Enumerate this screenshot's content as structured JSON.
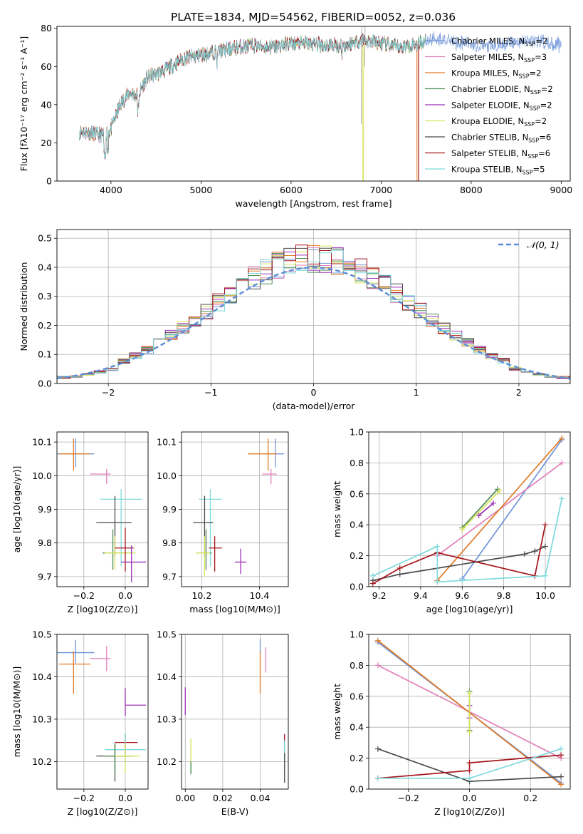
{
  "figure_title": "PLATE=1834, MJD=54562, FIBERID=0052, z=0.036",
  "colors": {
    "Chabrier MILES": "#6e94d8",
    "Salpeter MILES": "#e27fb8",
    "Kroupa MILES": "#e07b27",
    "Chabrier ELODIE": "#4c8c53",
    "Salpeter ELODIE": "#9b30b5",
    "Kroupa ELODIE": "#d9e35a",
    "Chabrier STELIB": "#4a4a4a",
    "Salpeter STELIB": "#a5151c",
    "Kroupa STELIB": "#7ed9dc",
    "normal": "#5b8ed6",
    "grid": "#b0b0b0"
  },
  "chart_data": [
    {
      "id": "spectrum",
      "type": "line",
      "xlabel": "wavelength [Angstrom, rest frame]",
      "ylabel": "Flux [fλ10⁻¹⁷ erg cm⁻² s⁻¹ A⁻¹]",
      "xlim": [
        3400,
        9100
      ],
      "ylim": [
        0,
        81
      ],
      "xticks": [
        4000,
        5000,
        6000,
        7000,
        8000,
        9000
      ],
      "yticks": [
        0,
        20,
        40,
        60,
        80
      ],
      "grid": false,
      "legend": "right",
      "continuum": {
        "x": [
          3650,
          3800,
          3900,
          4000,
          4100,
          4200,
          4300,
          4400,
          4600,
          4800,
          5000,
          5200,
          5400,
          5600,
          5800,
          6000,
          6200,
          6400,
          6600,
          6800,
          7000,
          7200,
          7400,
          7600,
          7800,
          8000,
          8200,
          8400,
          8700,
          9000
        ],
        "y": [
          26,
          25,
          24,
          27,
          40,
          46,
          45,
          54,
          58,
          64,
          66,
          68,
          70,
          71,
          70,
          72,
          72,
          71,
          71,
          74,
          72,
          70,
          72,
          75,
          73,
          72,
          70,
          72,
          74,
          71
        ]
      },
      "series": [
        {
          "name": "Chabrier MILES",
          "nssp": "2",
          "xmax": 9000
        },
        {
          "name": "Salpeter MILES",
          "nssp": "3",
          "xmax": 7500
        },
        {
          "name": "Kroupa MILES",
          "nssp": "2",
          "xmax": 7400,
          "drop_at": 7400
        },
        {
          "name": "Chabrier ELODIE",
          "nssp": "2",
          "xmax": 7500
        },
        {
          "name": "Salpeter ELODIE",
          "nssp": "2",
          "xmax": 7500
        },
        {
          "name": "Kroupa ELODIE",
          "nssp": "2",
          "xmax": 7500,
          "drop_at": 6800
        },
        {
          "name": "Chabrier STELIB",
          "nssp": "6",
          "xmax": 7500
        },
        {
          "name": "Salpeter STELIB",
          "nssp": "6",
          "xmax": 7420,
          "drop_at": 7420
        },
        {
          "name": "Kroupa STELIB",
          "nssp": "5",
          "xmax": 7500
        }
      ]
    },
    {
      "id": "residuals",
      "type": "histogram",
      "xlabel": "(data-model)/error",
      "ylabel": "Normed distribution",
      "xlim": [
        -2.5,
        2.5
      ],
      "ylim": [
        0,
        0.53
      ],
      "xticks": [
        -2,
        -1,
        0,
        1,
        2
      ],
      "yticks": [
        0.0,
        0.1,
        0.2,
        0.3,
        0.4,
        0.5
      ],
      "grid": true,
      "legend": "top-right",
      "normal_label": "𝒩(0, 1)",
      "bins": 45
    },
    {
      "id": "age_vs_Z",
      "type": "errorbar",
      "xlabel": "Z [log10(Z/Z⊙)]",
      "ylabel": "age  [log10(age/yr)]",
      "xlim": [
        -0.33,
        0.11
      ],
      "ylim": [
        9.67,
        10.13
      ],
      "xticks": [
        -0.2,
        0.0
      ],
      "yticks": [
        9.7,
        9.8,
        9.9,
        10.0,
        10.1
      ],
      "grid": true,
      "points": [
        {
          "name": "Chabrier MILES",
          "x": -0.24,
          "y": 10.065,
          "xerr": [
            0.09,
            0.09
          ],
          "yerr": [
            0.04,
            0.045
          ]
        },
        {
          "name": "Kroupa MILES",
          "x": -0.25,
          "y": 10.065,
          "xerr": [
            0.07,
            0.08
          ],
          "yerr": [
            0.05,
            0.045
          ]
        },
        {
          "name": "Salpeter MILES",
          "x": -0.09,
          "y": 10.005,
          "xerr": [
            0.08,
            0.02
          ],
          "yerr": [
            0.03,
            0.015
          ]
        },
        {
          "name": "Kroupa STELIB",
          "x": -0.02,
          "y": 9.93,
          "xerr": [
            0.1,
            0.1
          ],
          "yerr": [
            0.2,
            0.03
          ]
        },
        {
          "name": "Chabrier STELIB",
          "x": -0.05,
          "y": 9.86,
          "xerr": [
            0.09,
            0.08
          ],
          "yerr": [
            0.1,
            0.08
          ]
        },
        {
          "name": "Chabrier ELODIE",
          "x": -0.06,
          "y": 9.77,
          "xerr": [
            0.05,
            0.09
          ],
          "yerr": [
            0.05,
            0.07
          ]
        },
        {
          "name": "Kroupa ELODIE",
          "x": -0.05,
          "y": 9.77,
          "xerr": [
            0.05,
            0.1
          ],
          "yerr": [
            0.05,
            0.05
          ]
        },
        {
          "name": "Salpeter STELIB",
          "x": 0.0,
          "y": 9.785,
          "xerr": [
            0.05,
            0.04
          ],
          "yerr": [
            0.07,
            0.06
          ]
        },
        {
          "name": "Salpeter ELODIE",
          "x": 0.03,
          "y": 9.743,
          "xerr": [
            0.05,
            0.07
          ],
          "yerr": [
            0.06,
            0.05
          ]
        }
      ]
    },
    {
      "id": "age_vs_mass",
      "type": "errorbar",
      "xlabel": "mass [log10(M/M⊙)]",
      "ylabel": "",
      "xlim": [
        10.13,
        10.5
      ],
      "ylim": [
        9.67,
        10.13
      ],
      "xticks": [
        10.2,
        10.4
      ],
      "yticks": [
        9.7,
        9.8,
        9.9,
        10.0,
        10.1
      ],
      "grid": true,
      "points": [
        {
          "name": "Chabrier MILES",
          "x": 10.455,
          "y": 10.065,
          "xerr": [
            0.03,
            0.03
          ],
          "yerr": [
            0.04,
            0.045
          ]
        },
        {
          "name": "Kroupa MILES",
          "x": 10.43,
          "y": 10.065,
          "xerr": [
            0.07,
            0.03
          ],
          "yerr": [
            0.05,
            0.045
          ]
        },
        {
          "name": "Salpeter MILES",
          "x": 10.44,
          "y": 10.005,
          "xerr": [
            0.03,
            0.02
          ],
          "yerr": [
            0.03,
            0.015
          ]
        },
        {
          "name": "Kroupa STELIB",
          "x": 10.23,
          "y": 9.93,
          "xerr": [
            0.04,
            0.04
          ],
          "yerr": [
            0.2,
            0.03
          ]
        },
        {
          "name": "Chabrier STELIB",
          "x": 10.21,
          "y": 9.86,
          "xerr": [
            0.04,
            0.03
          ],
          "yerr": [
            0.1,
            0.08
          ]
        },
        {
          "name": "Chabrier ELODIE",
          "x": 10.215,
          "y": 9.77,
          "xerr": [
            0.03,
            0.02
          ],
          "yerr": [
            0.05,
            0.07
          ]
        },
        {
          "name": "Kroupa ELODIE",
          "x": 10.21,
          "y": 9.77,
          "xerr": [
            0.03,
            0.02
          ],
          "yerr": [
            0.07,
            0.05
          ]
        },
        {
          "name": "Salpeter STELIB",
          "x": 10.245,
          "y": 9.785,
          "xerr": [
            0.02,
            0.025
          ],
          "yerr": [
            0.07,
            0.035
          ]
        },
        {
          "name": "Salpeter ELODIE",
          "x": 10.335,
          "y": 9.743,
          "xerr": [
            0.02,
            0.02
          ],
          "yerr": [
            0.035,
            0.04
          ]
        }
      ]
    },
    {
      "id": "sfh_age",
      "type": "line",
      "xlabel": "age  [log10(age/yr)]",
      "ylabel": "mass weight",
      "xlim": [
        9.15,
        10.12
      ],
      "ylim": [
        0,
        1
      ],
      "xticks": [
        9.2,
        9.4,
        9.6,
        9.8,
        10.0
      ],
      "yticks": [
        0.0,
        0.2,
        0.4,
        0.6,
        0.8,
        1.0
      ],
      "grid": true,
      "series": [
        {
          "name": "Chabrier MILES",
          "x": [
            9.6,
            10.08
          ],
          "y": [
            0.05,
            0.95
          ]
        },
        {
          "name": "Salpeter MILES",
          "x": [
            9.48,
            10.08
          ],
          "y": [
            0.2,
            0.8
          ]
        },
        {
          "name": "Kroupa MILES",
          "x": [
            9.48,
            10.08
          ],
          "y": [
            0.04,
            0.96
          ]
        },
        {
          "name": "Chabrier ELODIE",
          "x": [
            9.6,
            9.77
          ],
          "y": [
            0.38,
            0.63
          ]
        },
        {
          "name": "Salpeter ELODIE",
          "x": [
            9.68,
            9.75
          ],
          "y": [
            0.46,
            0.54
          ]
        },
        {
          "name": "Kroupa ELODIE",
          "x": [
            9.6,
            9.78
          ],
          "y": [
            0.37,
            0.62
          ]
        },
        {
          "name": "Chabrier STELIB",
          "x": [
            9.17,
            9.3,
            9.9,
            9.95,
            10.0
          ],
          "y": [
            0.04,
            0.08,
            0.21,
            0.23,
            0.26
          ]
        },
        {
          "name": "Salpeter STELIB",
          "x": [
            9.17,
            9.3,
            9.48,
            9.95,
            10.0
          ],
          "y": [
            0.02,
            0.12,
            0.22,
            0.07,
            0.4
          ]
        },
        {
          "name": "Kroupa STELIB",
          "x": [
            9.17,
            9.48,
            9.48,
            9.6,
            10.0,
            10.08
          ],
          "y": [
            0.07,
            0.26,
            0.03,
            0.04,
            0.07,
            0.57
          ]
        }
      ]
    },
    {
      "id": "mass_vs_Z",
      "type": "errorbar",
      "xlabel": "Z [log10(Z/Z⊙)]",
      "ylabel": "mass [log10(M/M⊙)]",
      "xlim": [
        -0.33,
        0.11
      ],
      "ylim": [
        10.135,
        10.5
      ],
      "xticks": [
        -0.2,
        0.0
      ],
      "yticks": [
        10.2,
        10.3,
        10.4,
        10.5
      ],
      "grid": true,
      "points": [
        {
          "name": "Chabrier MILES",
          "x": -0.24,
          "y": 10.457,
          "xerr": [
            0.09,
            0.09
          ],
          "yerr": [
            0.025,
            0.03
          ]
        },
        {
          "name": "Kroupa MILES",
          "x": -0.25,
          "y": 10.43,
          "xerr": [
            0.07,
            0.08
          ],
          "yerr": [
            0.07,
            0.03
          ]
        },
        {
          "name": "Salpeter MILES",
          "x": -0.09,
          "y": 10.443,
          "xerr": [
            0.08,
            0.02
          ],
          "yerr": [
            0.03,
            0.03
          ]
        },
        {
          "name": "Salpeter ELODIE",
          "x": 0.0,
          "y": 10.333,
          "xerr": [
            0.0,
            0.1
          ],
          "yerr": [
            0.025,
            0.04
          ]
        },
        {
          "name": "Salpeter STELIB",
          "x": 0.0,
          "y": 10.245,
          "xerr": [
            0.05,
            0.06
          ],
          "yerr": [
            0.03,
            0.02
          ]
        },
        {
          "name": "Kroupa STELIB",
          "x": 0.0,
          "y": 10.228,
          "xerr": [
            0.1,
            0.1
          ],
          "yerr": [
            0.04,
            0.04
          ]
        },
        {
          "name": "Chabrier STELIB",
          "x": -0.05,
          "y": 10.213,
          "xerr": [
            0.09,
            0.08
          ],
          "yerr": [
            0.06,
            0.03
          ]
        },
        {
          "name": "Chabrier ELODIE",
          "x": -0.05,
          "y": 10.213,
          "xerr": [
            0.05,
            0.1
          ],
          "yerr": [
            0.04,
            0.03
          ]
        },
        {
          "name": "Kroupa ELODIE",
          "x": 0.0,
          "y": 10.213,
          "xerr": [
            0.05,
            0.07
          ],
          "yerr": [
            0.04,
            0.03
          ]
        }
      ]
    },
    {
      "id": "mass_vs_ebv",
      "type": "errorbar",
      "xlabel": "E(B-V)",
      "ylabel": "",
      "xlim": [
        -0.002,
        0.055
      ],
      "ylim": [
        10.135,
        10.5
      ],
      "xticks": [
        0.0,
        0.02,
        0.04
      ],
      "yticks": [
        10.2,
        10.3,
        10.4,
        10.5
      ],
      "grid": true,
      "points": [
        {
          "name": "Chabrier MILES",
          "x": 0.04,
          "y": 10.47,
          "xerr": [
            0,
            0
          ],
          "yerr": [
            0.015,
            0.02
          ]
        },
        {
          "name": "Kroupa MILES",
          "x": 0.04,
          "y": 10.43,
          "xerr": [
            0,
            0
          ],
          "yerr": [
            0.07,
            0.03
          ]
        },
        {
          "name": "Salpeter MILES",
          "x": 0.043,
          "y": 10.44,
          "xerr": [
            0,
            0
          ],
          "yerr": [
            0.03,
            0.03
          ]
        },
        {
          "name": "Salpeter ELODIE",
          "x": 0.0,
          "y": 10.34,
          "xerr": [
            0,
            0
          ],
          "yerr": [
            0.03,
            0.035
          ]
        },
        {
          "name": "Kroupa ELODIE",
          "x": 0.003,
          "y": 10.215,
          "xerr": [
            0,
            0
          ],
          "yerr": [
            0.04,
            0.04
          ]
        },
        {
          "name": "Chabrier ELODIE",
          "x": 0.003,
          "y": 10.19,
          "xerr": [
            0,
            0
          ],
          "yerr": [
            0.02,
            0.01
          ]
        },
        {
          "name": "Salpeter STELIB",
          "x": 0.053,
          "y": 10.245,
          "xerr": [
            0,
            0
          ],
          "yerr": [
            0.03,
            0.02
          ]
        },
        {
          "name": "Kroupa STELIB",
          "x": 0.053,
          "y": 10.2,
          "xerr": [
            0,
            0
          ],
          "yerr": [
            0.03,
            0.05
          ]
        },
        {
          "name": "Chabrier STELIB",
          "x": 0.053,
          "y": 10.19,
          "xerr": [
            0,
            0
          ],
          "yerr": [
            0.04,
            0.03
          ]
        }
      ]
    },
    {
      "id": "sfh_Z",
      "type": "line",
      "xlabel": "Z [log10(Z/Z⊙)]",
      "ylabel": "mass weight",
      "xlim": [
        -0.33,
        0.33
      ],
      "ylim": [
        0,
        1
      ],
      "xticks": [
        -0.2,
        0.0,
        0.2
      ],
      "yticks": [
        0.0,
        0.2,
        0.4,
        0.6,
        0.8,
        1.0
      ],
      "grid": true,
      "series": [
        {
          "name": "Chabrier MILES",
          "x": [
            -0.3,
            0.3
          ],
          "y": [
            0.95,
            0.04
          ]
        },
        {
          "name": "Salpeter MILES",
          "x": [
            -0.3,
            0.3
          ],
          "y": [
            0.8,
            0.2
          ]
        },
        {
          "name": "Kroupa MILES",
          "x": [
            -0.3,
            0.3
          ],
          "y": [
            0.96,
            0.03
          ]
        },
        {
          "name": "Chabrier ELODIE",
          "x": [
            0.0,
            0.0
          ],
          "y": [
            0.38,
            0.63
          ]
        },
        {
          "name": "Salpeter ELODIE",
          "x": [
            0.0,
            0.0
          ],
          "y": [
            0.46,
            0.54
          ]
        },
        {
          "name": "Kroupa ELODIE",
          "x": [
            0.0,
            0.0
          ],
          "y": [
            0.37,
            0.62
          ]
        },
        {
          "name": "Chabrier STELIB",
          "x": [
            -0.3,
            0.0,
            0.3
          ],
          "y": [
            0.26,
            0.05,
            0.08
          ]
        },
        {
          "name": "Salpeter STELIB",
          "x": [
            -0.3,
            0.0,
            0.0,
            0.3
          ],
          "y": [
            0.07,
            0.12,
            0.17,
            0.22
          ]
        },
        {
          "name": "Kroupa STELIB",
          "x": [
            -0.3,
            0.0,
            0.3
          ],
          "y": [
            0.07,
            0.07,
            0.26
          ]
        }
      ]
    }
  ]
}
